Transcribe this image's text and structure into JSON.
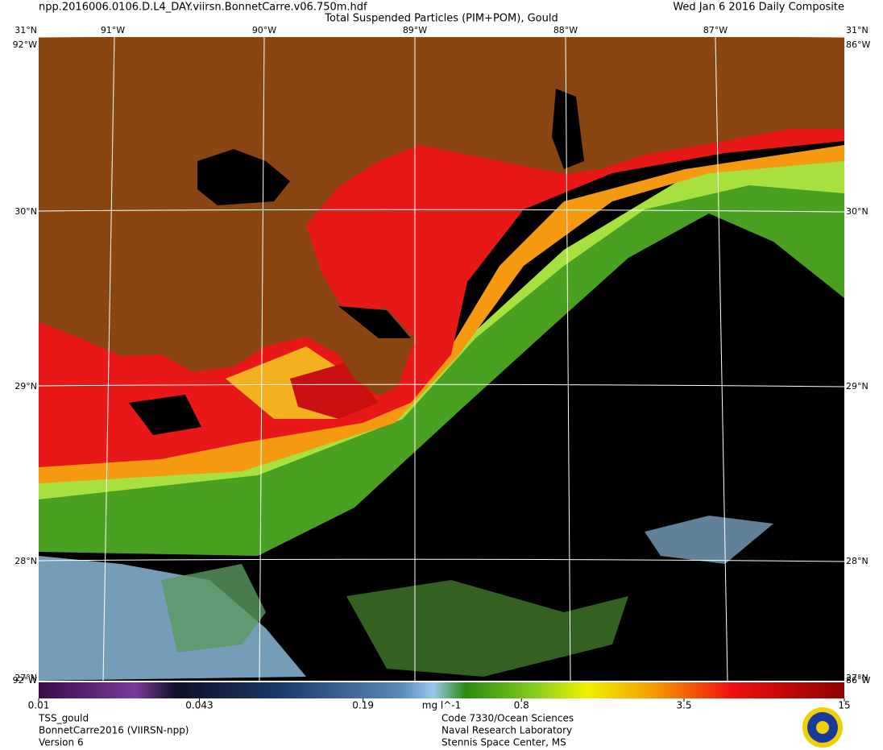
{
  "header": {
    "filename": "npp.2016006.0106.D.L4_DAY.viirsn.BonnetCarre.v06.750m.hdf",
    "title": "Total Suspended Particles (PIM+POM), Gould",
    "date": "Wed Jan  6 2016 Daily Composite"
  },
  "map": {
    "lat_labels": [
      "31°N",
      "30°N",
      "29°N",
      "28°N",
      "27°N"
    ],
    "lon_labels": [
      "92°W",
      "91°W",
      "90°W",
      "89°W",
      "88°W",
      "87°W",
      "86°W"
    ],
    "land_color": "#8b4513",
    "water_color": "#000000"
  },
  "colorbar": {
    "range": [
      0.01,
      15
    ],
    "log": true,
    "ticks": [
      0.01,
      0.043,
      0.19,
      0.8,
      3.5,
      15
    ],
    "units": "mg l^-1"
  },
  "footer": {
    "left": [
      "TSS_gould",
      "BonnetCarre2016 (VIIRSN-npp)",
      "Version 6"
    ],
    "right": [
      "Code 7330/Ocean Sciences",
      "Naval Research Laboratory",
      "Stennis Space Center, MS"
    ]
  }
}
